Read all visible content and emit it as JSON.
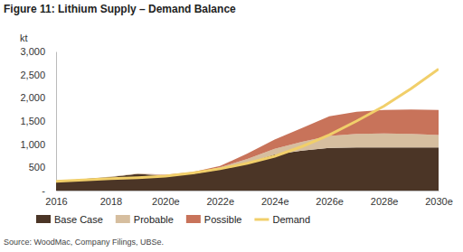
{
  "chart_data": {
    "type": "area",
    "title": "Figure 11: Lithium Supply – Demand Balance",
    "y_label": "kt",
    "source": "Source: WoodMac, Company Filings, UBSe.",
    "stacked": true,
    "grid": false,
    "legend": "bottom",
    "categories": [
      "2016",
      null,
      "2018",
      null,
      "2020e",
      null,
      "2022e",
      null,
      "2024e",
      null,
      "2026e",
      null,
      "2028e",
      null,
      "2030e"
    ],
    "ylim": [
      0,
      3000
    ],
    "yticks": [
      {
        "value": 0,
        "label": "-"
      },
      500,
      {
        "value": 1000,
        "label": "1,000"
      },
      {
        "value": 1500,
        "label": "1,500"
      },
      {
        "value": 2000,
        "label": "2,000"
      },
      {
        "value": 2500,
        "label": "2,500"
      },
      {
        "value": 3000,
        "label": "3,000"
      }
    ],
    "series": [
      {
        "name": "Base Case",
        "color": "#4b3526",
        "values": [
          200,
          250,
          290,
          360,
          320,
          360,
          460,
          600,
          780,
          860,
          920,
          930,
          930,
          930,
          930
        ]
      },
      {
        "name": "Probable",
        "color": "#d6be9f",
        "values": [
          0,
          0,
          10,
          10,
          10,
          20,
          40,
          80,
          120,
          190,
          260,
          290,
          300,
          290,
          270
        ]
      },
      {
        "name": "Possible",
        "color": "#c8735a",
        "values": [
          0,
          0,
          0,
          0,
          10,
          20,
          30,
          120,
          200,
          300,
          420,
          480,
          510,
          530,
          540
        ]
      },
      {
        "name": "Demand",
        "color": "#f1cf6a",
        "type": "line",
        "values": [
          200,
          230,
          260,
          280,
          310,
          380,
          470,
          590,
          740,
          950,
          1200,
          1500,
          1820,
          2200,
          2620
        ]
      }
    ]
  }
}
